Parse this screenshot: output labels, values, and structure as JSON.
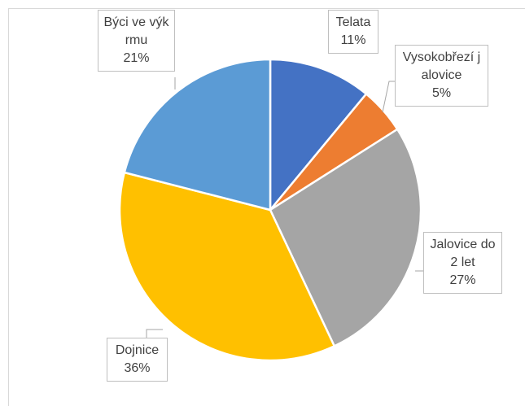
{
  "chart_data": {
    "type": "pie",
    "categories": [
      "Telata",
      "Vysokobřezí jalovice",
      "Jalovice do 2 let",
      "Dojnice",
      "Býci ve výkrmu"
    ],
    "values": [
      11,
      5,
      27,
      36,
      21
    ],
    "value_labels": [
      "11%",
      "5%",
      "27%",
      "36%",
      "21%"
    ],
    "colors": [
      "#4472c4",
      "#ed7d31",
      "#a5a5a5",
      "#ffc000",
      "#5b9bd5"
    ]
  }
}
